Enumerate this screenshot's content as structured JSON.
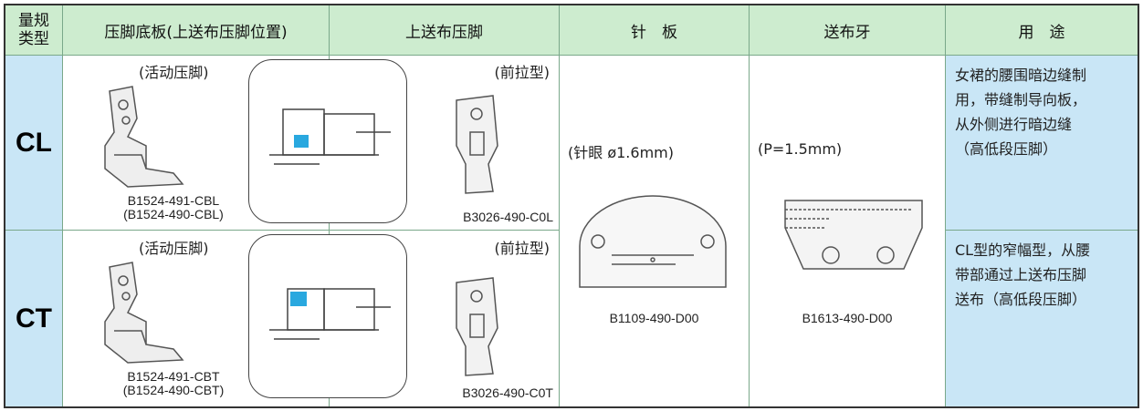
{
  "table": {
    "headers": [
      [
        "量规",
        "类型"
      ],
      "压脚底板(上送布压脚位置)",
      "上送布压脚",
      "针　板",
      "送布牙",
      "用　途"
    ],
    "rows": [
      {
        "gauge": "CL",
        "presser_note": "(活动压脚)",
        "presser_codes": [
          "B1524-491-CBL",
          "(B1524-490-CBL)"
        ],
        "feed_foot_note": "(前拉型)",
        "feed_foot_code": "B3026-490-C0L",
        "usage": [
          "女裙的腰围暗边缝制",
          "用，带缝制导向板，",
          "从外侧进行暗边缝",
          "（高低段压脚）"
        ]
      },
      {
        "gauge": "CT",
        "presser_note": "(活动压脚)",
        "presser_codes": [
          "B1524-491-CBT",
          "(B1524-490-CBT)"
        ],
        "feed_foot_note": "(前拉型)",
        "feed_foot_code": "B3026-490-C0T",
        "usage": [
          "CL型的窄幅型，从腰",
          "带部通过上送布压脚",
          "送布（高低段压脚）"
        ]
      }
    ],
    "needle_plate": {
      "note": "(针眼 ø1.6mm)",
      "code": "B1109-490-D00"
    },
    "feed_dog": {
      "note": "(P=1.5mm)",
      "code": "B1613-490-D00"
    }
  }
}
